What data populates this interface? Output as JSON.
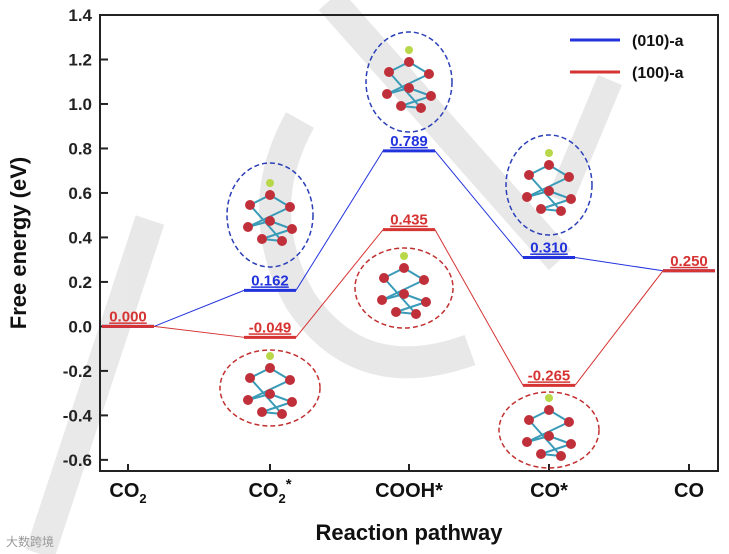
{
  "chart_data": {
    "type": "line",
    "xlabel": "Reaction pathway",
    "ylabel": "Free energy (eV)",
    "ylim": [
      -0.65,
      1.4
    ],
    "yticks": [
      -0.6,
      -0.4,
      -0.2,
      0.0,
      0.2,
      0.4,
      0.6,
      0.8,
      1.0,
      1.2,
      1.4
    ],
    "ytick_labels": [
      "-0.6",
      "-0.4",
      "-0.2",
      "0.0",
      "0.2",
      "0.4",
      "0.6",
      "0.8",
      "1.0",
      "1.2",
      "1.4"
    ],
    "categories": [
      {
        "base": "CO",
        "sub": "2",
        "sup": ""
      },
      {
        "base": "CO",
        "sub": "2",
        "sup": "*"
      },
      {
        "base": "COOH*",
        "sub": "",
        "sup": ""
      },
      {
        "base": "CO*",
        "sub": "",
        "sup": ""
      },
      {
        "base": "CO",
        "sub": "",
        "sup": ""
      }
    ],
    "legend_position": "top-right",
    "series": [
      {
        "name": "(010)-a",
        "color": "#2233dd",
        "values": [
          0.0,
          0.162,
          0.789,
          0.31,
          0.25
        ],
        "labels": [
          "",
          "0.162",
          "0.789",
          "0.310",
          ""
        ]
      },
      {
        "name": "(100)-a",
        "color": "#d63333",
        "values": [
          0.0,
          -0.049,
          0.435,
          -0.265,
          0.25
        ],
        "labels": [
          "0.000",
          "-0.049",
          "0.435",
          "-0.265",
          "0.250"
        ]
      }
    ],
    "grid": false
  },
  "watermark": "大数跨境"
}
